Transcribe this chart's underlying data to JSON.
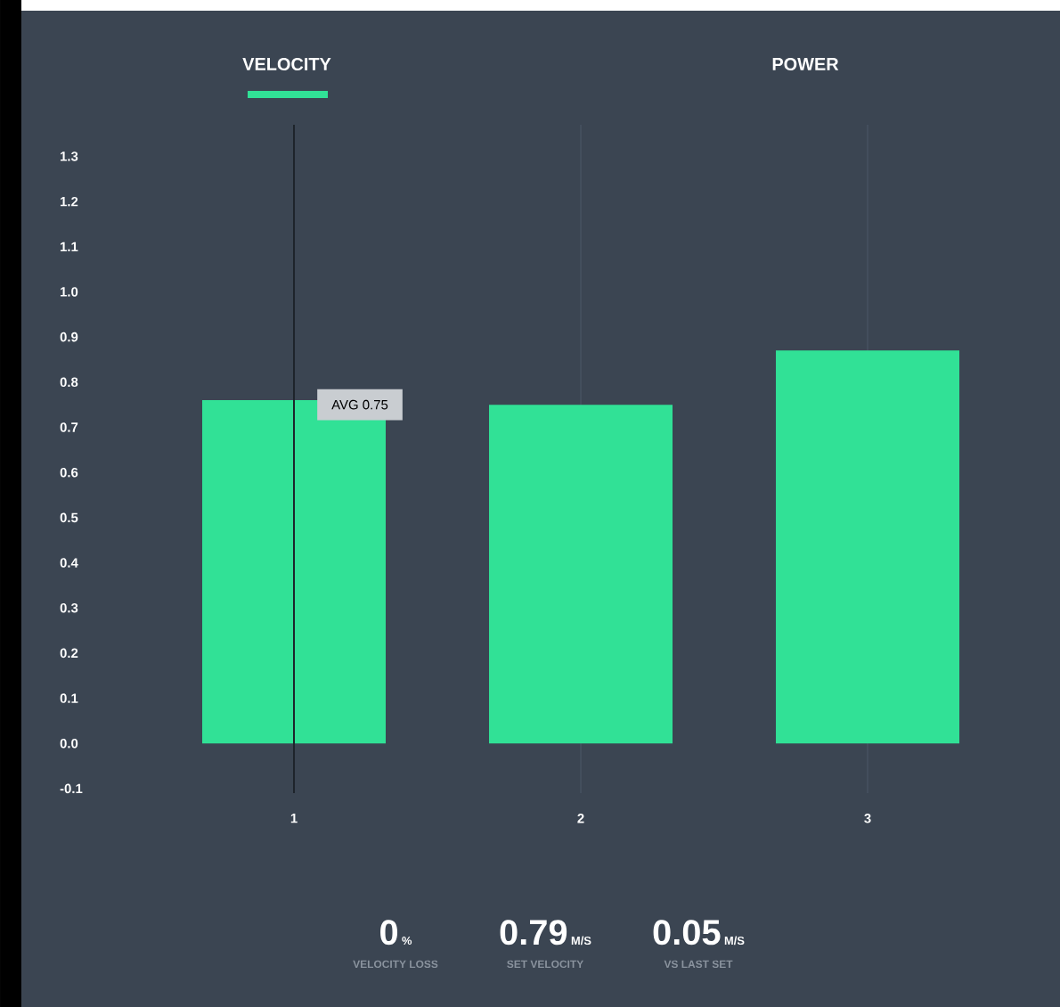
{
  "chart_data": {
    "type": "bar",
    "title": "VELOCITY",
    "subtitle": "POWER",
    "categories": [
      "1",
      "2",
      "3"
    ],
    "values": [
      0.76,
      0.75,
      0.87
    ],
    "color": "#31e196",
    "ylim": [
      -0.11,
      1.37
    ],
    "yticks": [
      -0.1,
      {
        "value": 0,
        "label": "0.0"
      },
      0.1,
      0.2,
      0.3,
      0.4,
      0.5,
      0.6,
      0.7,
      0.8,
      0.9,
      {
        "value": 1,
        "label": "1.0"
      },
      1.1,
      1.2,
      1.3
    ],
    "grid": "x",
    "ref_lines": [
      {
        "axis": "x",
        "value": "1",
        "color": "#1e242b"
      }
    ],
    "annotations": [
      {
        "text": "AVG 0.75",
        "x": "1",
        "y": 0.75
      },
      "0",
      "%",
      "VELOCITY LOSS",
      "0.79",
      "M/S",
      "SET VELOCITY",
      "0.05",
      "M/S",
      "VS LAST SET"
    ]
  }
}
